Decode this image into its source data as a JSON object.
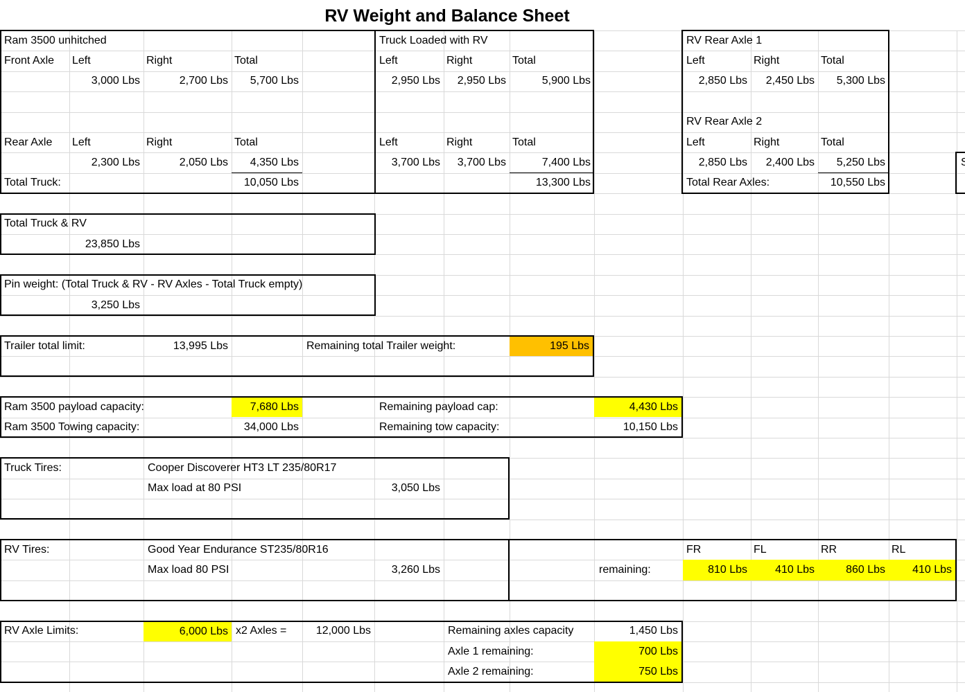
{
  "title": "RV Weight and Balance Sheet",
  "headers": {
    "left": "Left",
    "right": "Right",
    "total": "Total"
  },
  "truck_unhitched": {
    "title": "Ram 3500 unhitched",
    "front_label": "Front Axle",
    "front": {
      "left": "3,000 Lbs",
      "right": "2,700 Lbs",
      "total": "5,700 Lbs"
    },
    "rear_label": "Rear Axle",
    "rear": {
      "left": "2,300 Lbs",
      "right": "2,050 Lbs",
      "total": "4,350 Lbs"
    },
    "total_label": "Total Truck:",
    "total": "10,050 Lbs"
  },
  "truck_loaded": {
    "title": "Truck Loaded with RV",
    "front": {
      "left": "2,950 Lbs",
      "right": "2,950 Lbs",
      "total": "5,900 Lbs"
    },
    "rear": {
      "left": "3,700 Lbs",
      "right": "3,700 Lbs",
      "total": "7,400 Lbs"
    },
    "total": "13,300 Lbs"
  },
  "rv_axles": {
    "axle1_title": "RV Rear Axle 1",
    "axle1": {
      "left": "2,850 Lbs",
      "right": "2,450 Lbs",
      "total": "5,300 Lbs"
    },
    "axle2_title": "RV Rear Axle 2",
    "axle2": {
      "left": "2,850 Lbs",
      "right": "2,400 Lbs",
      "total": "5,250 Lbs"
    },
    "total_label": "Total Rear Axles:",
    "total": "10,550 Lbs"
  },
  "partial_right_cell": "S",
  "combined": {
    "label": "Total Truck & RV",
    "value": "23,850 Lbs"
  },
  "pin_weight": {
    "label": "Pin weight: (Total Truck & RV - RV Axles - Total Truck empty)",
    "value": "3,250 Lbs"
  },
  "trailer": {
    "limit_label": "Trailer total limit:",
    "limit": "13,995 Lbs",
    "remaining_label": "Remaining total Trailer weight:",
    "remaining": "195 Lbs"
  },
  "capacity": {
    "payload_label": "Ram 3500 payload capacity:",
    "payload": "7,680 Lbs",
    "payload_remaining_label": "Remaining payload cap:",
    "payload_remaining": "4,430 Lbs",
    "towing_label": "Ram 3500 Towing capacity:",
    "towing": "34,000 Lbs",
    "tow_remaining_label": "Remaining tow capacity:",
    "tow_remaining": "10,150 Lbs"
  },
  "truck_tires": {
    "label": "Truck Tires:",
    "model": "Cooper Discoverer HT3 LT 235/80R17",
    "max_load_label": "Max load at 80 PSI",
    "max_load": "3,050 Lbs"
  },
  "rv_tires": {
    "label": "RV Tires:",
    "model": "Good Year Endurance ST235/80R16",
    "max_load_label": "Max load 80 PSI",
    "max_load": "3,260 Lbs",
    "remaining_label": "remaining:",
    "positions": {
      "fr": "FR",
      "fl": "FL",
      "rr": "RR",
      "rl": "RL"
    },
    "remaining": {
      "fr": "810 Lbs",
      "fl": "410 Lbs",
      "rr": "860 Lbs",
      "rl": "410 Lbs"
    }
  },
  "rv_axle_limits": {
    "label": "RV Axle Limits:",
    "per_axle": "6,000 Lbs",
    "multiplier_label": "x2 Axles =",
    "total": "12,000 Lbs",
    "remaining_label": "Remaining axles capacity",
    "remaining": "1,450 Lbs",
    "axle1_label": "Axle 1 remaining:",
    "axle1": "700 Lbs",
    "axle2_label": "Axle 2 remaining:",
    "axle2": "750 Lbs"
  },
  "colors": {
    "highlight_yellow": "#FFFF00",
    "highlight_orange": "#FFC000",
    "grid_line": "#D9D9D9",
    "border": "#000000"
  }
}
